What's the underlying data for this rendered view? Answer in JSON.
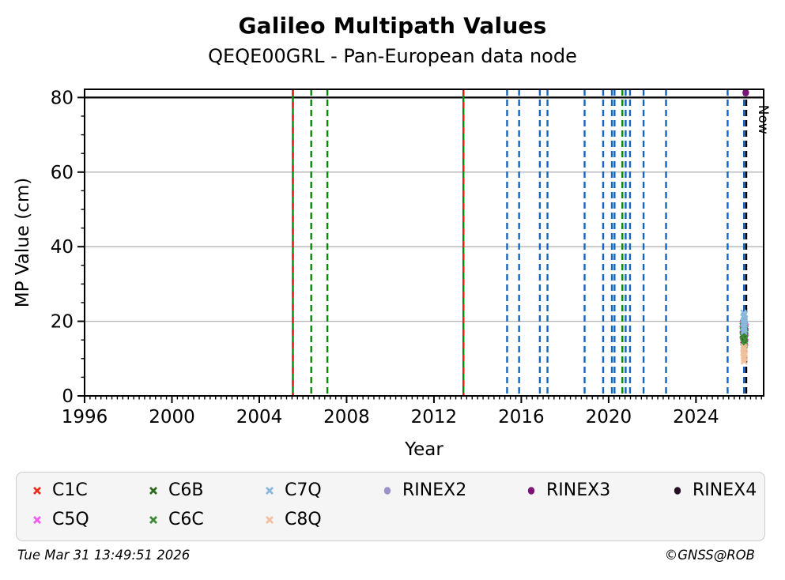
{
  "title": "Galileo Multipath Values",
  "subtitle": "QEQE00GRL - Pan-European data node",
  "footer": {
    "timestamp": "Tue Mar 31 13:49:51 2026",
    "credit": "©GNSS@ROB"
  },
  "chart_data": {
    "type": "scatter",
    "title": "Galileo Multipath Values",
    "subtitle": "QEQE00GRL - Pan-European data node",
    "xlabel": "Year",
    "ylabel": "MP Value (cm)",
    "xlim": [
      1996,
      2027.1
    ],
    "ylim": [
      0,
      82.2
    ],
    "x_major_ticks": [
      1996,
      2000,
      2004,
      2008,
      2012,
      2016,
      2020,
      2024
    ],
    "x_minor_step": 0.25,
    "y_major_ticks": [
      0,
      20,
      40,
      60,
      80
    ],
    "y_minor_step": 5,
    "grid": {
      "horizontal_at": [
        20,
        40,
        60
      ],
      "color": "#b4b4b4"
    },
    "threshold_line": {
      "y": 80,
      "color": "#000000"
    },
    "now_line": {
      "x": 2026.3,
      "label": "Now",
      "color": "#000000",
      "style": "dashed"
    },
    "colors": {
      "blue": "#1565c0",
      "green": "#0a870a",
      "red": "#e02010"
    },
    "event_lines": [
      {
        "x": 2005.54,
        "color": "green-red",
        "style": "dashed-overlay"
      },
      {
        "x": 2006.38,
        "color": "green",
        "style": "dashed"
      },
      {
        "x": 2007.12,
        "color": "green",
        "style": "dashed"
      },
      {
        "x": 2013.35,
        "color": "green-red",
        "style": "dashed-overlay"
      },
      {
        "x": 2015.35,
        "color": "blue",
        "style": "dashed"
      },
      {
        "x": 2015.9,
        "color": "blue",
        "style": "dashed"
      },
      {
        "x": 2016.85,
        "color": "blue",
        "style": "dashed"
      },
      {
        "x": 2017.2,
        "color": "blue",
        "style": "dashed"
      },
      {
        "x": 2018.9,
        "color": "blue",
        "style": "dashed"
      },
      {
        "x": 2019.75,
        "color": "blue",
        "style": "dashed"
      },
      {
        "x": 2020.15,
        "color": "blue",
        "style": "dashed"
      },
      {
        "x": 2020.27,
        "color": "blue",
        "style": "dashed"
      },
      {
        "x": 2020.63,
        "color": "green",
        "style": "dashed"
      },
      {
        "x": 2020.78,
        "color": "blue",
        "style": "dashed"
      },
      {
        "x": 2020.98,
        "color": "blue",
        "style": "dashed"
      },
      {
        "x": 2021.6,
        "color": "blue",
        "style": "dashed"
      },
      {
        "x": 2022.63,
        "color": "blue",
        "style": "dashed"
      },
      {
        "x": 2025.45,
        "color": "blue",
        "style": "dashed"
      },
      {
        "x": 2026.2,
        "color": "blue",
        "style": "dashed"
      }
    ],
    "series": [
      {
        "name": "C1C",
        "marker": "x",
        "color": "#e8301f",
        "points": []
      },
      {
        "name": "C5Q",
        "marker": "x",
        "color": "#ef5ced",
        "points": [
          [
            2026.13,
            19.3
          ],
          [
            2026.28,
            18.6
          ],
          [
            2026.14,
            17.9
          ],
          [
            2026.27,
            17.1
          ],
          [
            2026.13,
            16.3
          ],
          [
            2026.28,
            15.6
          ],
          [
            2026.15,
            14.9
          ],
          [
            2026.26,
            14.5
          ]
        ]
      },
      {
        "name": "C6B",
        "marker": "x",
        "color": "#2e6b1f",
        "points": [
          [
            2026.16,
            19.6
          ],
          [
            2026.24,
            19.0
          ],
          [
            2026.18,
            18.2
          ],
          [
            2026.26,
            17.4
          ],
          [
            2026.15,
            16.5
          ],
          [
            2026.23,
            15.7
          ],
          [
            2026.19,
            14.8
          ],
          [
            2026.25,
            14.0
          ]
        ]
      },
      {
        "name": "C6C",
        "marker": "x",
        "color": "#3d8b37",
        "points": [
          [
            2026.14,
            18.8
          ],
          [
            2026.27,
            18.1
          ],
          [
            2026.16,
            17.3
          ],
          [
            2026.25,
            16.6
          ],
          [
            2026.15,
            15.9
          ],
          [
            2026.24,
            15.1
          ],
          [
            2026.17,
            14.3
          ],
          [
            2026.22,
            13.6
          ]
        ]
      },
      {
        "name": "C7Q",
        "marker": "x",
        "color": "#8ab8dd",
        "points": [
          [
            2026.18,
            22.3
          ],
          [
            2026.23,
            21.9
          ],
          [
            2026.2,
            21.5
          ],
          [
            2026.17,
            21.1
          ],
          [
            2026.24,
            20.7
          ],
          [
            2026.19,
            20.3
          ],
          [
            2026.22,
            19.9
          ],
          [
            2026.18,
            19.5
          ],
          [
            2026.23,
            19.1
          ],
          [
            2026.2,
            18.7
          ],
          [
            2026.17,
            18.3
          ],
          [
            2026.22,
            17.9
          ],
          [
            2026.19,
            17.5
          ],
          [
            2026.21,
            17.2
          ]
        ]
      },
      {
        "name": "C8Q",
        "marker": "x",
        "color": "#f2c09c",
        "points": [
          [
            2026.19,
            13.2
          ],
          [
            2026.23,
            12.8
          ],
          [
            2026.18,
            12.4
          ],
          [
            2026.22,
            12.0
          ],
          [
            2026.17,
            11.6
          ],
          [
            2026.24,
            11.2
          ],
          [
            2026.19,
            10.8
          ],
          [
            2026.22,
            10.4
          ],
          [
            2026.2,
            10.0
          ],
          [
            2026.19,
            9.5
          ],
          [
            2026.21,
            9.2
          ]
        ]
      },
      {
        "name": "RINEX2",
        "marker": "circle",
        "color": "#9a92c8",
        "points": []
      },
      {
        "name": "RINEX3",
        "marker": "circle",
        "color": "#7c1377",
        "points": [
          [
            2026.28,
            81.3
          ]
        ]
      },
      {
        "name": "RINEX4",
        "marker": "circle",
        "color": "#251026",
        "points": []
      }
    ],
    "legend": {
      "position": "bottom",
      "columns": [
        [
          "C1C",
          "C5Q"
        ],
        [
          "C6B",
          "C6C"
        ],
        [
          "C7Q",
          "C8Q"
        ],
        [
          "RINEX2"
        ],
        [
          "RINEX3"
        ],
        [
          "RINEX4"
        ]
      ]
    }
  }
}
